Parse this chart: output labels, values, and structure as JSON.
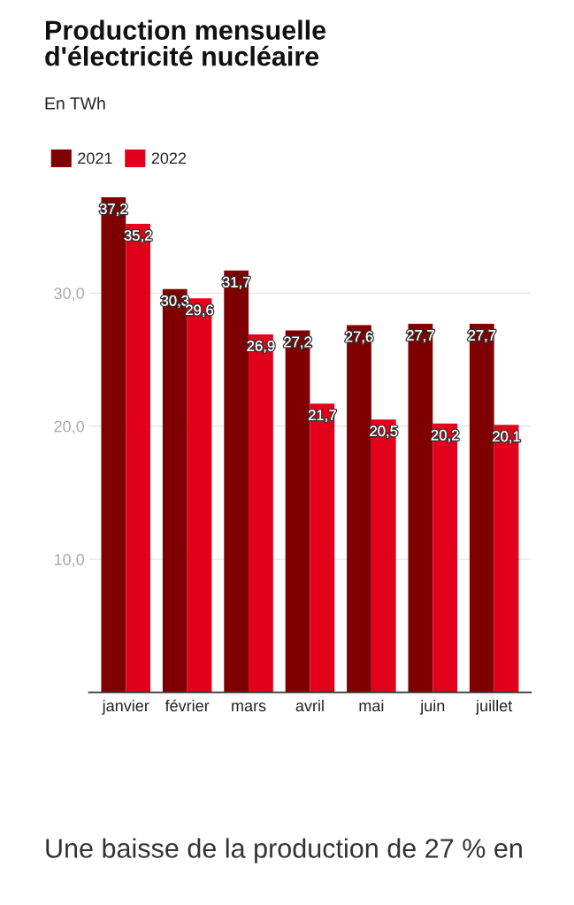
{
  "chart_data": {
    "type": "bar",
    "title": "Production mensuelle\nd'électricité nucléaire",
    "subtitle": "En TWh",
    "categories": [
      "janvier",
      "février",
      "mars",
      "avril",
      "mai",
      "juin",
      "juillet"
    ],
    "series": [
      {
        "name": "2021",
        "color": "#7f0000",
        "values": [
          37.2,
          30.3,
          31.7,
          27.2,
          27.6,
          27.7,
          27.7
        ],
        "value_labels": [
          "37,2",
          "30,3",
          "31,7",
          "27,2",
          "27,6",
          "27,7",
          "27,7"
        ]
      },
      {
        "name": "2022",
        "color": "#e2001a",
        "values": [
          35.2,
          29.6,
          26.9,
          21.7,
          20.5,
          20.2,
          20.1
        ],
        "value_labels": [
          "35,2",
          "29,6",
          "26,9",
          "21,7",
          "20,5",
          "20,2",
          "20,1"
        ]
      }
    ],
    "ylim": [
      0,
      37.2
    ],
    "yticks": [
      {
        "value": 0,
        "label": null
      },
      {
        "value": 10,
        "label": "10,0"
      },
      {
        "value": 20,
        "label": "20,0"
      },
      {
        "value": 30,
        "label": "30,0"
      }
    ],
    "grid": "y",
    "legend": "top left",
    "annotations": [
      "Une baisse de la production de 27 % en"
    ]
  }
}
